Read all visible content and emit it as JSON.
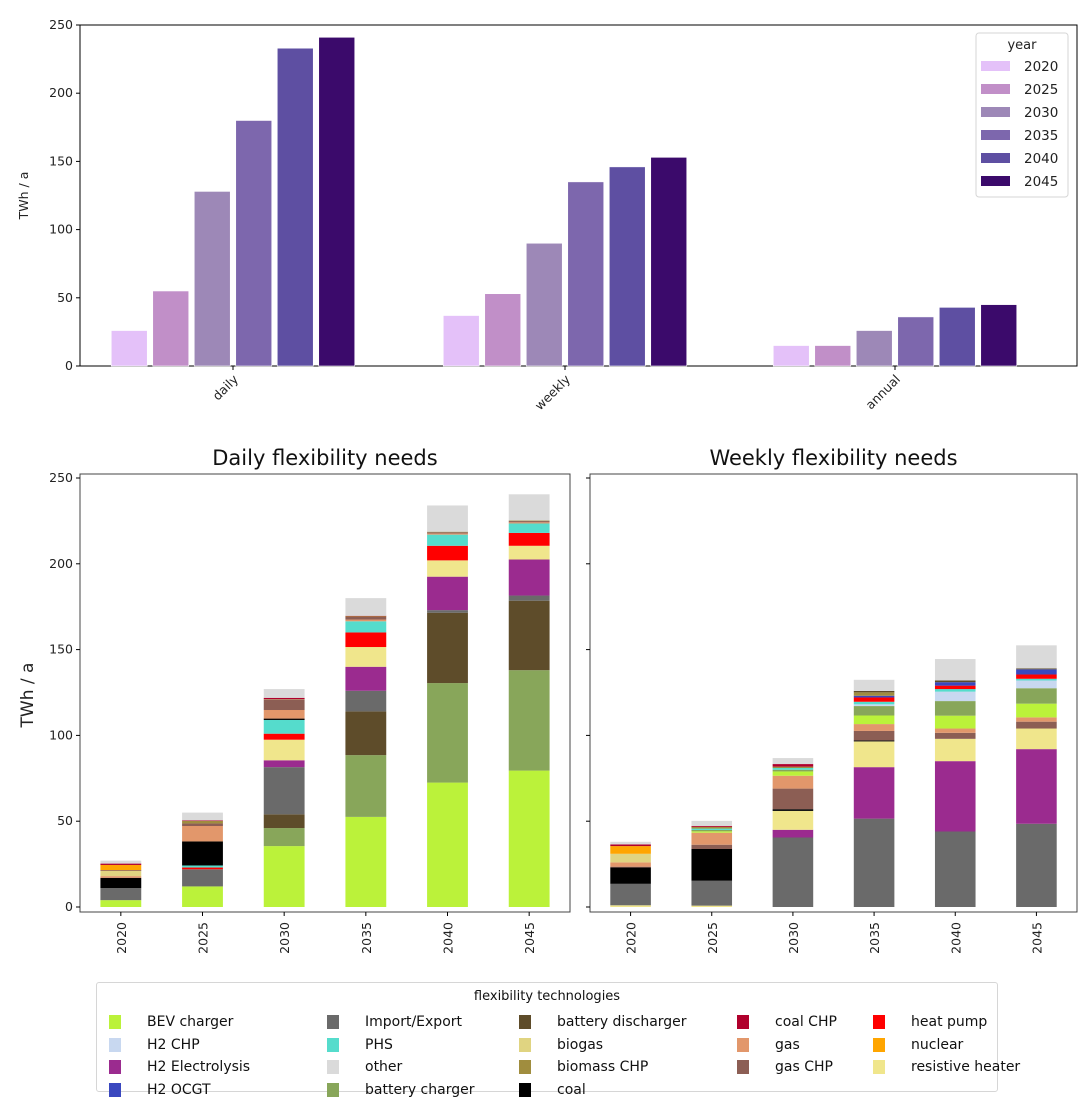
{
  "chart_data": [
    {
      "id": "summary",
      "type": "bar",
      "title": "",
      "xlabel": "",
      "ylabel": "TWh / a",
      "ylim": [
        0,
        250
      ],
      "yticks": [
        0,
        50,
        100,
        150,
        200,
        250
      ],
      "categories": [
        "daily",
        "weekly",
        "annual"
      ],
      "legend": {
        "title": "year",
        "placement": "top-right"
      },
      "series": [
        {
          "name": "2020",
          "color": "#e4c1f9",
          "values": [
            26,
            37,
            15
          ]
        },
        {
          "name": "2025",
          "color": "#c18fc8",
          "values": [
            55,
            53,
            15
          ]
        },
        {
          "name": "2030",
          "color": "#9d88b7",
          "values": [
            128,
            90,
            26
          ]
        },
        {
          "name": "2035",
          "color": "#7d67ad",
          "values": [
            180,
            135,
            36
          ]
        },
        {
          "name": "2040",
          "color": "#5e4fa2",
          "values": [
            233,
            146,
            43
          ]
        },
        {
          "name": "2045",
          "color": "#3b0a6b",
          "values": [
            241,
            153,
            45
          ]
        }
      ]
    },
    {
      "id": "daily",
      "type": "bar",
      "stacked": true,
      "title": "Daily flexibility needs",
      "xlabel": "",
      "ylabel": "TWh / a",
      "ylim": [
        0,
        250
      ],
      "yticks": [
        0,
        50,
        100,
        150,
        200,
        250
      ],
      "categories": [
        "2020",
        "2025",
        "2030",
        "2035",
        "2040",
        "2045"
      ],
      "series": [
        {
          "name": "BEV charger",
          "values": [
            4,
            12,
            35.5,
            52.5,
            72.5,
            79.5
          ]
        },
        {
          "name": "battery charger",
          "values": [
            0,
            0,
            10.5,
            36,
            58,
            58.5
          ]
        },
        {
          "name": "battery discharger",
          "values": [
            0,
            0,
            8,
            25.5,
            41,
            40.5
          ]
        },
        {
          "name": "Import/Export",
          "values": [
            7,
            10,
            27.5,
            12,
            1.5,
            3
          ]
        },
        {
          "name": "H2 Electrolysis",
          "values": [
            0,
            0,
            4,
            14,
            19.5,
            21
          ]
        },
        {
          "name": "resistive heater",
          "values": [
            0,
            0,
            12,
            11.5,
            9.5,
            8
          ]
        },
        {
          "name": "heat pump",
          "values": [
            0,
            1,
            3.5,
            8.5,
            8.5,
            7.5
          ]
        },
        {
          "name": "PHS",
          "values": [
            0,
            1.2,
            8,
            6.5,
            6.5,
            5.5
          ]
        },
        {
          "name": "coal",
          "values": [
            6,
            14,
            0.8,
            0,
            0,
            0
          ]
        },
        {
          "name": "gas",
          "values": [
            1,
            9,
            5,
            1,
            0.7,
            0.7
          ]
        },
        {
          "name": "biogas",
          "values": [
            3,
            0,
            0,
            0,
            0,
            0
          ]
        },
        {
          "name": "gas CHP",
          "values": [
            0.5,
            1.5,
            6,
            1.5,
            0.7,
            0.7
          ]
        },
        {
          "name": "nuclear",
          "values": [
            3,
            0,
            0,
            0,
            0,
            0
          ]
        },
        {
          "name": "biomass CHP",
          "values": [
            0,
            1.5,
            0.3,
            0.5,
            0.3,
            0.3
          ]
        },
        {
          "name": "coal CHP",
          "values": [
            0.8,
            0.2,
            0.8,
            0.2,
            0,
            0
          ]
        },
        {
          "name": "other",
          "values": [
            1.7,
            4.6,
            5.1,
            10.3,
            15.3,
            15.3
          ]
        }
      ]
    },
    {
      "id": "weekly",
      "type": "bar",
      "stacked": true,
      "title": "Weekly flexibility needs",
      "xlabel": "",
      "ylabel": "",
      "ylim": [
        0,
        250
      ],
      "yticks": [
        0,
        50,
        100,
        150,
        200,
        250
      ],
      "sharey": true,
      "categories": [
        "2020",
        "2025",
        "2030",
        "2035",
        "2040",
        "2045"
      ],
      "series": [
        {
          "name": "resistive heater",
          "values": [
            1,
            0.8,
            0,
            0,
            0,
            0
          ]
        },
        {
          "name": "Import/Export",
          "values": [
            12.5,
            14.5,
            40.5,
            51.5,
            44,
            48.5
          ]
        },
        {
          "name": "H2 Electrolysis",
          "values": [
            0,
            0,
            4.5,
            30,
            41,
            43.5
          ]
        },
        {
          "name": "resistive heater ",
          "values": [
            0,
            0,
            11,
            15,
            13,
            12
          ]
        },
        {
          "name": "coal",
          "values": [
            9.5,
            18.5,
            1,
            0.6,
            0,
            0
          ]
        },
        {
          "name": "gas CHP",
          "values": [
            0.5,
            2.5,
            12,
            5.5,
            3.5,
            4
          ]
        },
        {
          "name": "gas",
          "values": [
            2.5,
            7,
            7.5,
            4,
            2.5,
            2.5
          ]
        },
        {
          "name": "biogas",
          "values": [
            5,
            0,
            0,
            0,
            0,
            0
          ]
        },
        {
          "name": "BEV charger",
          "values": [
            0,
            0.8,
            2.5,
            5,
            7.5,
            8
          ]
        },
        {
          "name": "battery charger",
          "values": [
            0,
            0.8,
            1,
            5.5,
            8.5,
            9
          ]
        },
        {
          "name": "H2 CHP",
          "values": [
            0,
            0,
            0,
            1,
            5.5,
            4.5
          ]
        },
        {
          "name": "PHS",
          "values": [
            0,
            0.8,
            1,
            1.5,
            1.5,
            1
          ]
        },
        {
          "name": "nuclear",
          "values": [
            4.5,
            0,
            0,
            0,
            0,
            0
          ]
        },
        {
          "name": "heat pump",
          "values": [
            0,
            0,
            0,
            2.5,
            2,
            2.5
          ]
        },
        {
          "name": "H2 OCGT",
          "values": [
            0,
            0,
            0,
            1,
            2,
            3
          ]
        },
        {
          "name": "biomass CHP",
          "values": [
            0,
            1,
            0.8,
            2,
            0,
            0
          ]
        },
        {
          "name": "battery discharger",
          "values": [
            0,
            0,
            0,
            0.8,
            1,
            0.5
          ]
        },
        {
          "name": "coal CHP",
          "values": [
            1,
            0.5,
            1.5,
            0,
            0,
            0
          ]
        },
        {
          "name": "other",
          "values": [
            1.5,
            3,
            3.5,
            6.5,
            12.5,
            13.5
          ]
        }
      ]
    }
  ],
  "tech_colors": {
    "BEV charger": "#bbf23a",
    "H2 CHP": "#c8d8f0",
    "H2 Electrolysis": "#9b2b8f",
    "H2 OCGT": "#3a48bf",
    "Import/Export": "#6a6a6a",
    "PHS": "#55dccc",
    "other": "#dadada",
    "battery charger": "#88a65a",
    "battery discharger": "#5e4c2a",
    "biogas": "#e0d481",
    "biomass CHP": "#a08d3e",
    "coal": "#000000",
    "coal CHP": "#b0002c",
    "gas": "#e2976b",
    "gas CHP": "#8c5e54",
    "heat pump": "#ff0000",
    "nuclear": "#ffa500",
    "resistive heater": "#f0e68c",
    "resistive heater ": "#f0e68c"
  },
  "legend": {
    "title": "flexibility technologies",
    "placement": "bottom-center",
    "items": [
      "BEV charger",
      "H2 CHP",
      "H2 Electrolysis",
      "H2 OCGT",
      "Import/Export",
      "PHS",
      "other",
      "battery charger",
      "battery discharger",
      "biogas",
      "biomass CHP",
      "coal",
      "coal CHP",
      "gas",
      "gas CHP",
      "heat pump",
      "nuclear",
      "resistive heater"
    ]
  }
}
